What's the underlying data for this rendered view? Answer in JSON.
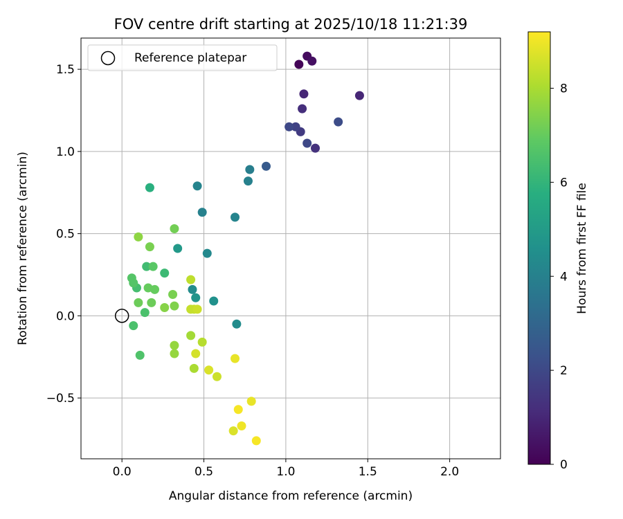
{
  "chart_data": {
    "type": "scatter",
    "title": "FOV centre drift starting at 2025/10/18 11:21:39",
    "xlabel": "Angular distance from reference (arcmin)",
    "ylabel": "Rotation from reference (arcmin)",
    "xlim": [
      -0.25,
      2.31
    ],
    "ylim": [
      -0.87,
      1.69
    ],
    "grid": true,
    "x_ticks": [
      0.0,
      0.5,
      1.0,
      1.5,
      2.0
    ],
    "x_tick_labels": [
      "0.0",
      "0.5",
      "1.0",
      "1.5",
      "2.0"
    ],
    "y_ticks": [
      -0.5,
      0.0,
      0.5,
      1.0,
      1.5
    ],
    "y_tick_labels": [
      "−0.5",
      "0.0",
      "0.5",
      "1.0",
      "1.5"
    ],
    "legend": {
      "label": "Reference platepar",
      "location": "top-left"
    },
    "reference_point": {
      "x": 0.0,
      "y": 0.0
    },
    "colorbar": {
      "label": "Hours from first FF file",
      "range": [
        0,
        9.2
      ],
      "ticks": [
        0,
        2,
        4,
        6,
        8
      ],
      "tick_labels": [
        "0",
        "2",
        "4",
        "6",
        "8"
      ],
      "colormap": "viridis"
    },
    "points": [
      {
        "x": 1.08,
        "y": 1.53,
        "h": 0.1
      },
      {
        "x": 1.13,
        "y": 1.58,
        "h": 0.3
      },
      {
        "x": 1.16,
        "y": 1.55,
        "h": 0.4
      },
      {
        "x": 1.11,
        "y": 1.35,
        "h": 1.0
      },
      {
        "x": 1.45,
        "y": 1.34,
        "h": 1.0
      },
      {
        "x": 1.1,
        "y": 1.26,
        "h": 1.2
      },
      {
        "x": 1.18,
        "y": 1.02,
        "h": 1.3
      },
      {
        "x": 1.09,
        "y": 1.12,
        "h": 1.6
      },
      {
        "x": 1.06,
        "y": 1.15,
        "h": 1.8
      },
      {
        "x": 1.02,
        "y": 1.15,
        "h": 2.0
      },
      {
        "x": 1.13,
        "y": 1.05,
        "h": 2.0
      },
      {
        "x": 1.32,
        "y": 1.18,
        "h": 2.1
      },
      {
        "x": 0.88,
        "y": 0.91,
        "h": 2.6
      },
      {
        "x": 0.78,
        "y": 0.89,
        "h": 3.9
      },
      {
        "x": 0.77,
        "y": 0.82,
        "h": 4.0
      },
      {
        "x": 0.46,
        "y": 0.79,
        "h": 4.1
      },
      {
        "x": 0.49,
        "y": 0.63,
        "h": 4.0
      },
      {
        "x": 0.69,
        "y": 0.6,
        "h": 4.1
      },
      {
        "x": 0.52,
        "y": 0.38,
        "h": 4.3
      },
      {
        "x": 0.43,
        "y": 0.16,
        "h": 4.4
      },
      {
        "x": 0.7,
        "y": -0.05,
        "h": 4.4
      },
      {
        "x": 0.56,
        "y": 0.09,
        "h": 4.6
      },
      {
        "x": 0.45,
        "y": 0.11,
        "h": 4.7
      },
      {
        "x": 0.34,
        "y": 0.41,
        "h": 4.9
      },
      {
        "x": 0.17,
        "y": 0.78,
        "h": 5.8
      },
      {
        "x": 0.26,
        "y": 0.26,
        "h": 6.2
      },
      {
        "x": 0.15,
        "y": 0.3,
        "h": 6.3
      },
      {
        "x": 0.09,
        "y": 0.17,
        "h": 6.4
      },
      {
        "x": 0.14,
        "y": 0.02,
        "h": 6.5
      },
      {
        "x": 0.07,
        "y": -0.06,
        "h": 6.5
      },
      {
        "x": 0.11,
        "y": -0.24,
        "h": 6.6
      },
      {
        "x": 0.06,
        "y": 0.23,
        "h": 6.7
      },
      {
        "x": 0.07,
        "y": 0.2,
        "h": 6.7
      },
      {
        "x": 0.19,
        "y": 0.3,
        "h": 6.8
      },
      {
        "x": 0.2,
        "y": 0.16,
        "h": 7.0
      },
      {
        "x": 0.16,
        "y": 0.17,
        "h": 7.0
      },
      {
        "x": 0.1,
        "y": 0.08,
        "h": 7.1
      },
      {
        "x": 0.18,
        "y": 0.08,
        "h": 7.1
      },
      {
        "x": 0.32,
        "y": 0.53,
        "h": 7.2
      },
      {
        "x": 0.17,
        "y": 0.42,
        "h": 7.3
      },
      {
        "x": 0.31,
        "y": 0.13,
        "h": 7.3
      },
      {
        "x": 0.32,
        "y": 0.06,
        "h": 7.4
      },
      {
        "x": 0.26,
        "y": 0.05,
        "h": 7.5
      },
      {
        "x": 0.1,
        "y": 0.48,
        "h": 7.6
      },
      {
        "x": 0.32,
        "y": -0.18,
        "h": 7.7
      },
      {
        "x": 0.32,
        "y": -0.23,
        "h": 7.7
      },
      {
        "x": 0.42,
        "y": -0.12,
        "h": 7.9
      },
      {
        "x": 0.44,
        "y": -0.32,
        "h": 8.0
      },
      {
        "x": 0.49,
        "y": -0.16,
        "h": 8.2
      },
      {
        "x": 0.42,
        "y": 0.22,
        "h": 8.3
      },
      {
        "x": 0.42,
        "y": 0.04,
        "h": 8.4
      },
      {
        "x": 0.44,
        "y": 0.04,
        "h": 8.4
      },
      {
        "x": 0.46,
        "y": 0.04,
        "h": 8.5
      },
      {
        "x": 0.58,
        "y": -0.37,
        "h": 8.5
      },
      {
        "x": 0.45,
        "y": -0.23,
        "h": 8.6
      },
      {
        "x": 0.53,
        "y": -0.33,
        "h": 8.7
      },
      {
        "x": 0.68,
        "y": -0.7,
        "h": 8.7
      },
      {
        "x": 0.69,
        "y": -0.26,
        "h": 8.9
      },
      {
        "x": 0.79,
        "y": -0.52,
        "h": 8.9
      },
      {
        "x": 0.73,
        "y": -0.67,
        "h": 9.0
      },
      {
        "x": 0.71,
        "y": -0.57,
        "h": 9.1
      },
      {
        "x": 0.82,
        "y": -0.76,
        "h": 9.1
      }
    ]
  }
}
